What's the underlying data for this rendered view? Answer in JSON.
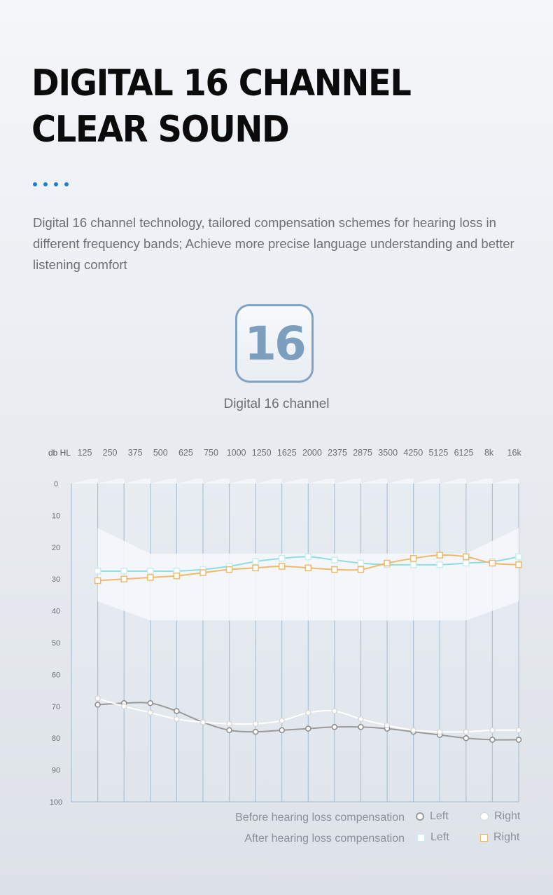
{
  "header": {
    "title_line1": "DIGITAL 16 CHANNEL",
    "title_line2": "CLEAR SOUND",
    "accent_color": "#1c7fd4"
  },
  "description": "Digital 16 channel technology, tailored compensation schemes for hearing loss in different frequency bands; Achieve more precise language understanding and better listening comfort",
  "badge": {
    "number": "16",
    "caption": "Digital 16 channel"
  },
  "chart_data": {
    "type": "line",
    "y_axis_label": "db HL",
    "x_categories": [
      "125",
      "250",
      "375",
      "500",
      "625",
      "750",
      "1000",
      "1250",
      "1625",
      "2000",
      "2375",
      "2875",
      "3500",
      "4250",
      "5125",
      "6125",
      "8k",
      "16k"
    ],
    "y_ticks": [
      "0",
      "10",
      "20",
      "30",
      "40",
      "50",
      "60",
      "70",
      "80",
      "90",
      "100"
    ],
    "ylim": [
      0,
      100
    ],
    "y_inverted": true,
    "grid": true,
    "series": [
      {
        "group": "Before hearing loss compensation",
        "name": "Left",
        "marker": "circle",
        "color": "#9a9a9a",
        "values": [
          69.5,
          69,
          69,
          71.5,
          75,
          77.5,
          78,
          77.5,
          77,
          76.5,
          76.5,
          77,
          78,
          79,
          80,
          80.5,
          80.5
        ]
      },
      {
        "group": "Before hearing loss compensation",
        "name": "Right",
        "marker": "circle",
        "color": "#ffffff",
        "values": [
          67.5,
          70,
          72,
          74,
          75,
          75.5,
          75.5,
          74.5,
          72,
          71.5,
          74,
          76,
          77.5,
          78,
          78,
          77.5,
          77.5
        ]
      },
      {
        "group": "After hearing loss compensation",
        "name": "Left",
        "marker": "square",
        "color": "#8fdde0",
        "values": [
          27.5,
          27.5,
          27.5,
          27.5,
          27,
          26,
          24.5,
          23.5,
          23,
          24,
          25,
          25.5,
          25.5,
          25.5,
          25,
          24.5,
          23
        ]
      },
      {
        "group": "After hearing loss compensation",
        "name": "Right",
        "marker": "square",
        "color": "#f0b96a",
        "values": [
          30.5,
          30,
          29.5,
          29,
          28,
          27,
          26.5,
          26,
          26.5,
          27,
          27,
          25,
          23.5,
          22.5,
          23,
          25,
          25.5
        ]
      }
    ]
  },
  "legend": {
    "before_label": "Before hearing loss compensation",
    "after_label": "After hearing loss compensation",
    "left_label": "Left",
    "right_label": "Right",
    "before_left_color": "#9a9a9a",
    "before_right_color": "#d8d8d8",
    "after_left_color": "#c9eef0",
    "after_right_color": "#f0b96a"
  }
}
